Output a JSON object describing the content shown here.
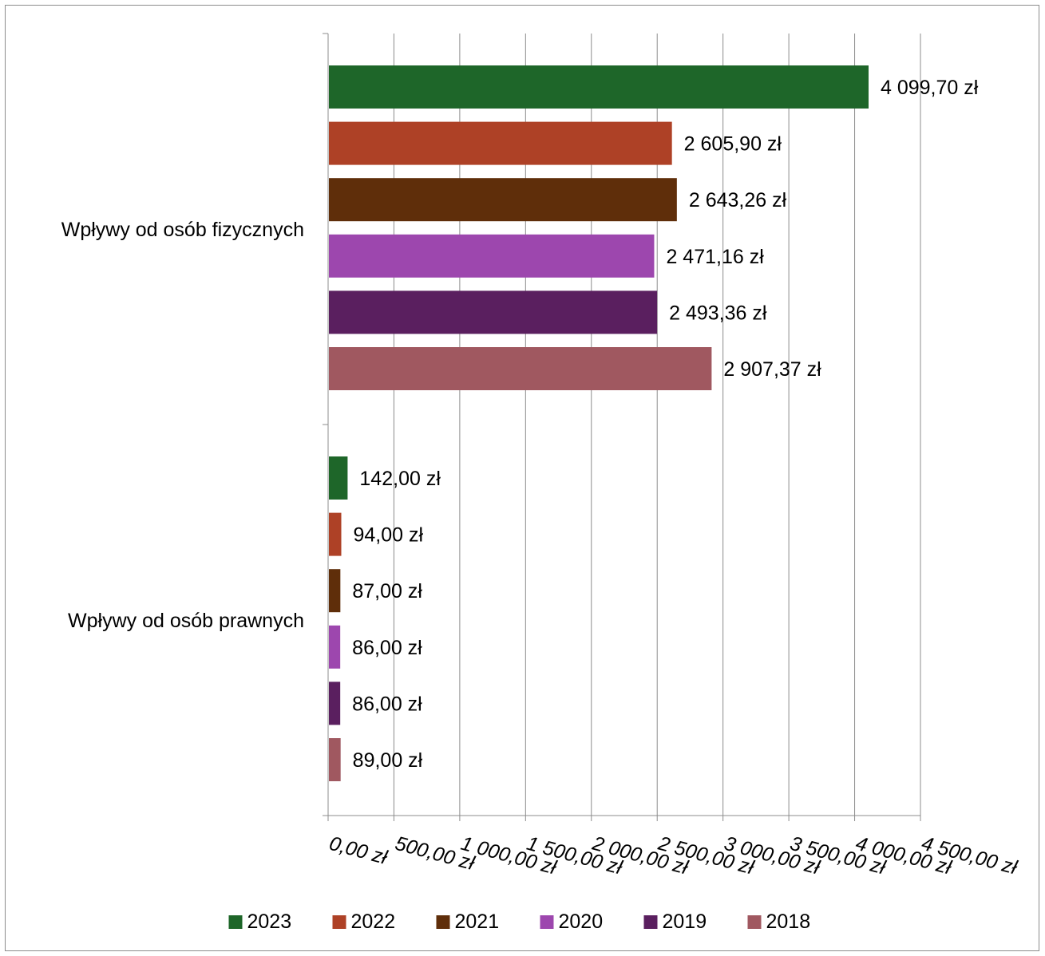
{
  "chart_data": {
    "type": "bar",
    "orientation": "horizontal",
    "categories": [
      "Wpływy od osób prawnych",
      "Wpływy od osób fizycznych"
    ],
    "series": [
      {
        "name": "2023",
        "color": "#1e6629",
        "values": [
          142.0,
          4099.7
        ],
        "labels": [
          "142,00 zł",
          "4 099,70 zł"
        ]
      },
      {
        "name": "2022",
        "color": "#ae4126",
        "values": [
          94.0,
          2605.9
        ],
        "labels": [
          "94,00 zł",
          "2 605,90 zł"
        ]
      },
      {
        "name": "2021",
        "color": "#5f2e0a",
        "values": [
          87.0,
          2643.26
        ],
        "labels": [
          "87,00 zł",
          "2 643,26 zł"
        ]
      },
      {
        "name": "2020",
        "color": "#9d47ae",
        "values": [
          86.0,
          2471.16
        ],
        "labels": [
          "86,00 zł",
          "2 471,16 zł"
        ]
      },
      {
        "name": "2019",
        "color": "#5a1f5f",
        "values": [
          86.0,
          2493.36
        ],
        "labels": [
          "86,00 zł",
          "2 493,36 zł"
        ]
      },
      {
        "name": "2018",
        "color": "#a05860",
        "values": [
          89.0,
          2907.37
        ],
        "labels": [
          "89,00 zł",
          "2 907,37 zł"
        ]
      }
    ],
    "xlim": [
      0,
      4500
    ],
    "xticks": [
      0,
      500,
      1000,
      1500,
      2000,
      2500,
      3000,
      3500,
      4000,
      4500
    ],
    "xtick_labels": [
      "0,00 zł",
      "500,00 zł",
      "1 000,00 zł",
      "1 500,00 zł",
      "2 000,00 zł",
      "2 500,00 zł",
      "3 000,00 zł",
      "3 500,00 zł",
      "4 000,00 zł",
      "4 500,00 zł"
    ],
    "grid": "vertical",
    "legend_position": "bottom"
  }
}
